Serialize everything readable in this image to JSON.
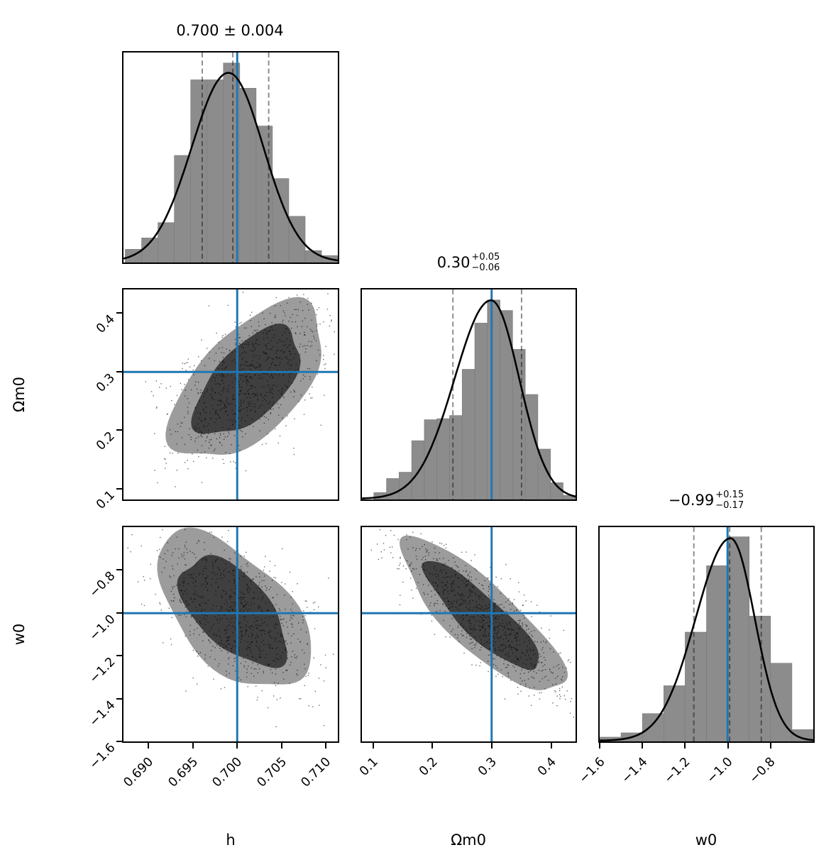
{
  "figure": {
    "kind": "MCMC corner plot (triangle plot) of posterior samples",
    "background": "#ffffff"
  },
  "style": {
    "truth_color": "#1f77b4",
    "hist_fill": "#8c8c8c",
    "hist_edge": "#7a7a7a",
    "contour_outer_fill": "#9c9c9c",
    "contour_inner_fill": "#3f3f3f",
    "kde_color": "#000000",
    "quantile_color": "#000000",
    "quantile_opacity": 0.45,
    "scatter_color": "#000000",
    "spine_color": "#000000"
  },
  "chart_data": {
    "type": "corner",
    "truth": {
      "h": 0.7,
      "om0": 0.3,
      "w0": -1.0
    },
    "parameters": [
      {
        "id": "h",
        "label": "h",
        "title": {
          "main": "0.700 ± 0.004",
          "sup": "",
          "sub": ""
        },
        "truth": 0.7,
        "axis": {
          "min": 0.687,
          "max": 0.7115,
          "ticks": [
            0.69,
            0.695,
            0.7,
            0.705,
            0.71
          ],
          "tick_labels": [
            "0.690",
            "0.695",
            "0.700",
            "0.705",
            "0.710"
          ]
        },
        "quantiles": [
          0.696,
          0.6995,
          0.7036
        ],
        "hist": {
          "bin_start": 0.6872,
          "bin_width": 0.00187,
          "heights": [
            0.063,
            0.117,
            0.19,
            0.51,
            0.87,
            0.87,
            0.95,
            0.83,
            0.65,
            0.4,
            0.22,
            0.057,
            0.033
          ]
        },
        "kde": {
          "mean": 0.699,
          "sigma_left": 0.0042,
          "sigma_right": 0.004,
          "peak": 0.9
        }
      },
      {
        "id": "om0",
        "label": "Ωm0",
        "title": {
          "main": "0.30",
          "sup": "+0.05",
          "sub": "−0.06"
        },
        "truth": 0.3,
        "axis": {
          "min": 0.079,
          "max": 0.443,
          "ticks": [
            0.1,
            0.2,
            0.3,
            0.4
          ],
          "tick_labels": [
            "0.1",
            "0.2",
            "0.3",
            "0.4"
          ]
        },
        "quantiles": [
          0.234,
          0.3,
          0.351
        ],
        "hist": {
          "bin_start": 0.0993,
          "bin_width": 0.0215,
          "heights": [
            0.033,
            0.1,
            0.13,
            0.28,
            0.38,
            0.385,
            0.4,
            0.62,
            0.84,
            0.95,
            0.9,
            0.715,
            0.5,
            0.24,
            0.08,
            0.02
          ]
        },
        "kde": {
          "mean": 0.299,
          "sigma_left": 0.062,
          "sigma_right": 0.048,
          "peak": 0.945
        }
      },
      {
        "id": "w0",
        "label": "w0",
        "title": {
          "main": "−0.99",
          "sup": "+0.15",
          "sub": "−0.17"
        },
        "truth": -1.0,
        "axis": {
          "min": -1.607,
          "max": -0.593,
          "ticks": [
            -1.6,
            -1.4,
            -1.2,
            -1.0,
            -0.8
          ],
          "tick_labels": [
            "−1.6",
            "−1.4",
            "−1.2",
            "−1.0",
            "−0.8"
          ]
        },
        "quantiles": [
          -1.16,
          -0.99,
          -0.84
        ],
        "hist": {
          "bin_start": -1.607,
          "bin_width": 0.1014,
          "heights": [
            0.02,
            0.04,
            0.13,
            0.26,
            0.51,
            0.82,
            0.955,
            0.585,
            0.365,
            0.055
          ]
        },
        "kde": {
          "mean": -0.986,
          "sigma_left": 0.165,
          "sigma_right": 0.115,
          "peak": 0.945
        }
      }
    ],
    "scatter_panels": [
      {
        "x": "h",
        "y": "om0",
        "correlation": "positive",
        "center": [
          0.582,
          0.44
        ],
        "angle_deg": -46,
        "outer_axes": [
          0.455,
          0.235
        ],
        "inner_axes": [
          0.315,
          0.16
        ],
        "n_points": 900,
        "seed": 11
      },
      {
        "x": "h",
        "y": "w0",
        "correlation": "negative",
        "center": [
          0.513,
          0.392
        ],
        "angle_deg": 46,
        "outer_axes": [
          0.45,
          0.245
        ],
        "inner_axes": [
          0.315,
          0.165
        ],
        "n_points": 900,
        "seed": 22
      },
      {
        "x": "om0",
        "y": "w0",
        "correlation": "strong negative",
        "center": [
          0.562,
          0.418
        ],
        "angle_deg": 43,
        "outer_axes": [
          0.5,
          0.155
        ],
        "inner_axes": [
          0.36,
          0.095
        ],
        "n_points": 900,
        "seed": 33
      }
    ]
  }
}
